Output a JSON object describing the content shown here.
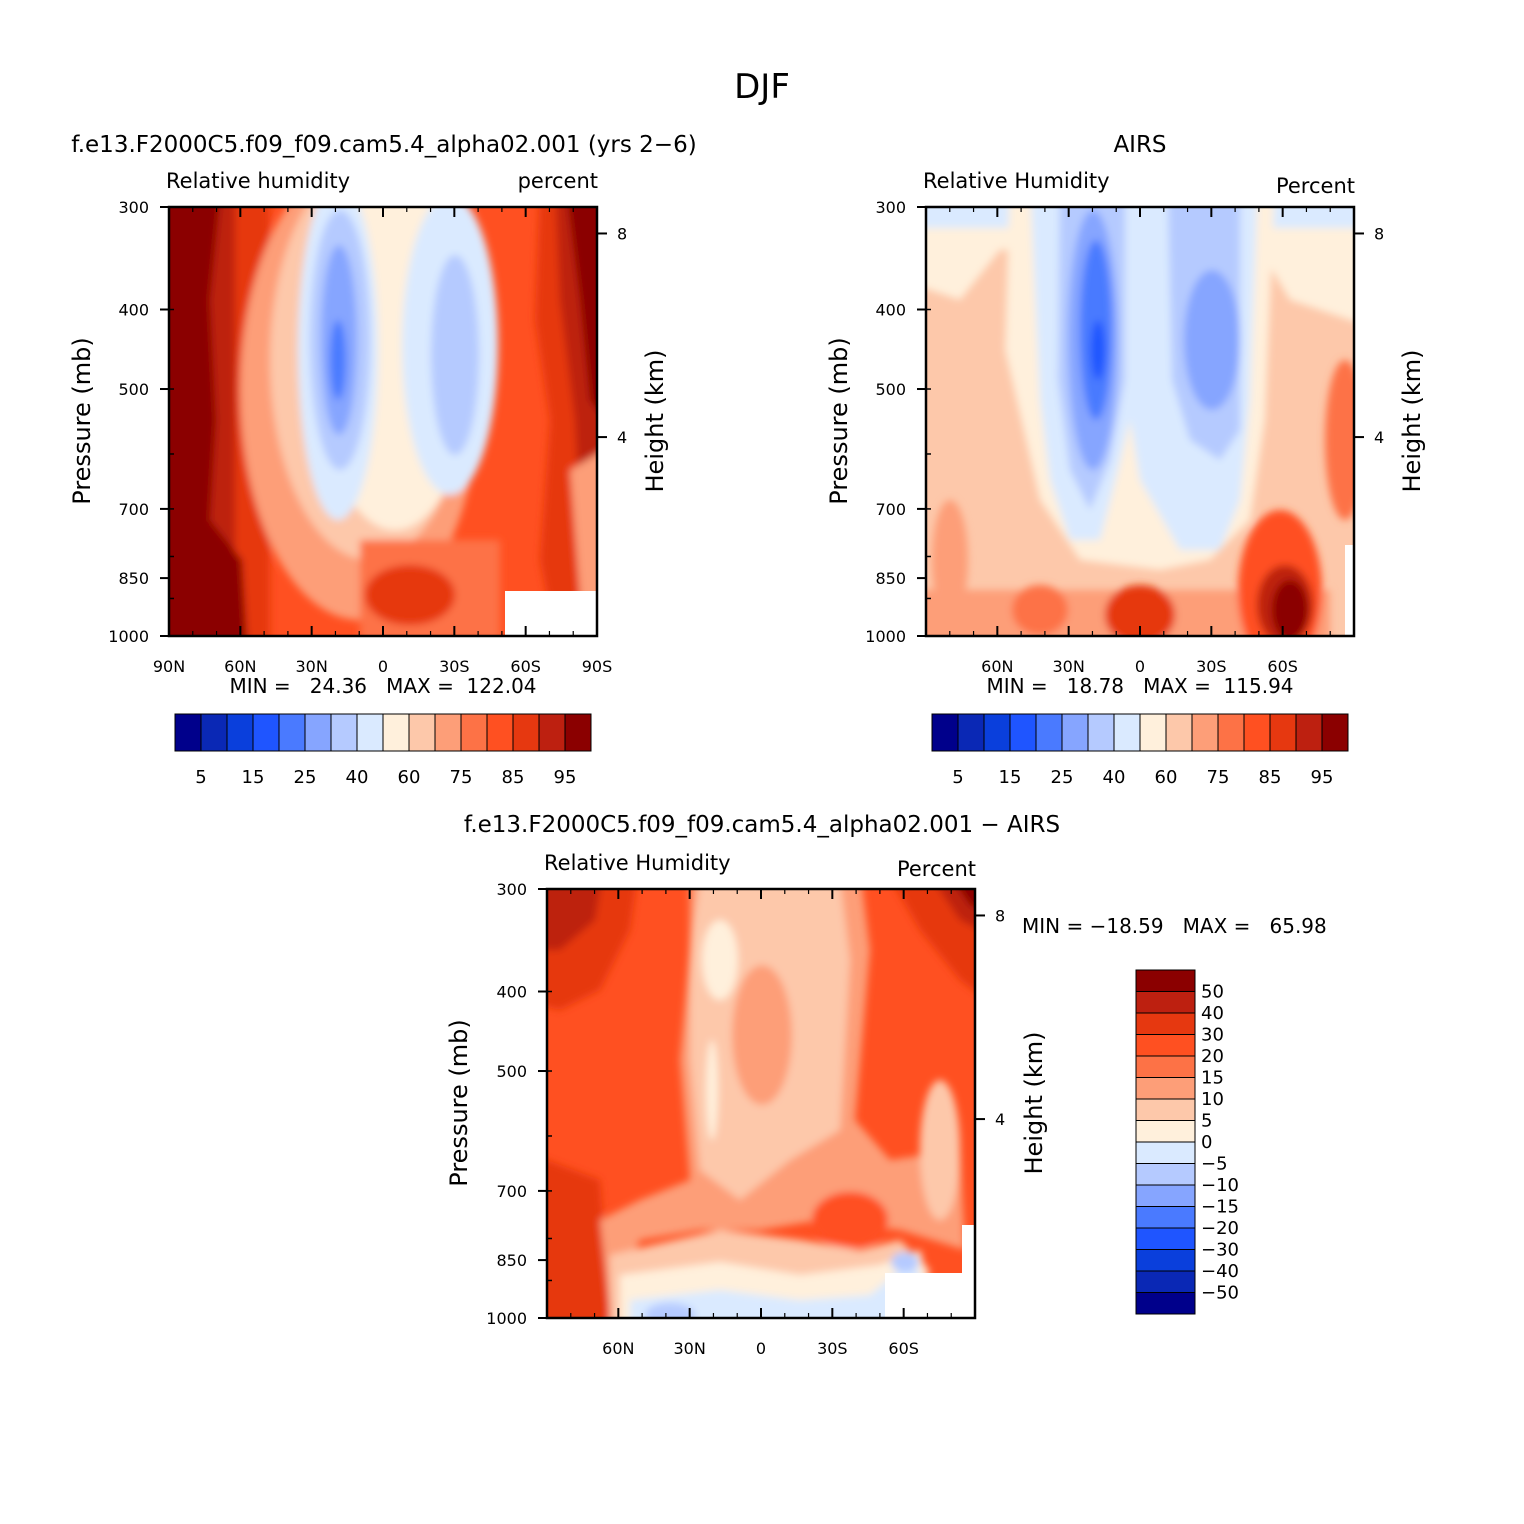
{
  "figure": {
    "title": "DJF",
    "shared": {
      "left_axis_title": "Pressure (mb)",
      "right_axis_title": "Height (km)",
      "pressure_levels": [
        300,
        400,
        500,
        700,
        850,
        1000
      ],
      "height_ticks": [
        "8",
        "4"
      ]
    }
  },
  "chart_data": [
    {
      "type": "heatmap",
      "id": "model",
      "title": "f.e13.F2000C5.f09_f09.cam5.4_alpha02.001 (yrs 2−6)",
      "left_string": "Relative humidity",
      "right_string": "percent",
      "ylabel": "Pressure (mb)",
      "y2label": "Height (km)",
      "xlim": [
        90,
        -90
      ],
      "ylim": [
        1000,
        300
      ],
      "x_ticks": [
        "90N",
        "60N",
        "30N",
        "0",
        "30S",
        "60S",
        "90S"
      ],
      "y_ticks": [
        "300",
        "400",
        "500",
        "700",
        "850",
        "1000"
      ],
      "y2_ticks": [
        "8",
        "4"
      ],
      "min_max": "MIN =   24.36   MAX =  122.04",
      "min": 24.36,
      "max": 122.04,
      "colorbar_labels": [
        "5",
        "15",
        "25",
        "40",
        "60",
        "75",
        "85",
        "95"
      ]
    },
    {
      "type": "heatmap",
      "id": "obs",
      "title": "AIRS",
      "left_string": "Relative Humidity",
      "right_string": "Percent",
      "ylabel": "Pressure (mb)",
      "y2label": "Height (km)",
      "xlim": [
        90,
        -90
      ],
      "ylim": [
        1000,
        300
      ],
      "x_ticks": [
        "60N",
        "30N",
        "0",
        "30S",
        "60S"
      ],
      "y_ticks": [
        "300",
        "400",
        "500",
        "700",
        "850",
        "1000"
      ],
      "y2_ticks": [
        "8",
        "4"
      ],
      "min_max": "MIN =   18.78   MAX =  115.94",
      "min": 18.78,
      "max": 115.94,
      "colorbar_labels": [
        "5",
        "15",
        "25",
        "40",
        "60",
        "75",
        "85",
        "95"
      ]
    },
    {
      "type": "heatmap",
      "id": "diff",
      "title": "f.e13.F2000C5.f09_f09.cam5.4_alpha02.001 − AIRS",
      "left_string": "Relative Humidity",
      "right_string": "Percent",
      "ylabel": "Pressure (mb)",
      "y2label": "Height (km)",
      "xlim": [
        90,
        -90
      ],
      "ylim": [
        1000,
        300
      ],
      "x_ticks": [
        "60N",
        "30N",
        "0",
        "30S",
        "60S"
      ],
      "y_ticks": [
        "300",
        "400",
        "500",
        "700",
        "850",
        "1000"
      ],
      "y2_ticks": [
        "8",
        "4"
      ],
      "min_max": "MIN = −18.59   MAX =   65.98",
      "min": -18.59,
      "max": 65.98,
      "colorbar_labels": [
        "50",
        "40",
        "30",
        "20",
        "15",
        "10",
        "5",
        "0",
        "−5",
        "−10",
        "−15",
        "−20",
        "−30",
        "−40",
        "−50"
      ]
    }
  ],
  "palettes": {
    "rh": [
      "#00008b",
      "#0a28b5",
      "#0a3fdc",
      "#1f55ff",
      "#4a7aff",
      "#86a5ff",
      "#b5caff",
      "#daeaff",
      "#fff0dc",
      "#fdc8aa",
      "#fd9e78",
      "#fd7246",
      "#ff5021",
      "#e63810",
      "#bd2010",
      "#8b0000"
    ],
    "diff": [
      "#8b0000",
      "#bd2010",
      "#e63810",
      "#ff5021",
      "#fd7246",
      "#fd9e78",
      "#fdc8aa",
      "#fff0dc",
      "#daeaff",
      "#b5caff",
      "#86a5ff",
      "#4a7aff",
      "#1f55ff",
      "#0a3fdc",
      "#0a28b5",
      "#00008b"
    ]
  }
}
